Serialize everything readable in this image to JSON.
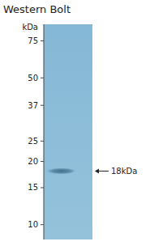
{
  "chart_data": {
    "type": "blot",
    "title": "Western Bolt",
    "y_label": "kDa",
    "log": "y",
    "ylim": [
      8.5,
      90
    ],
    "yticks": [
      75,
      50,
      37,
      25,
      20,
      15,
      10
    ],
    "values": [
      18
    ],
    "value_labels": [
      "18kDa"
    ],
    "data_labels": true,
    "tick_labels": "y",
    "color": "#336180"
  }
}
